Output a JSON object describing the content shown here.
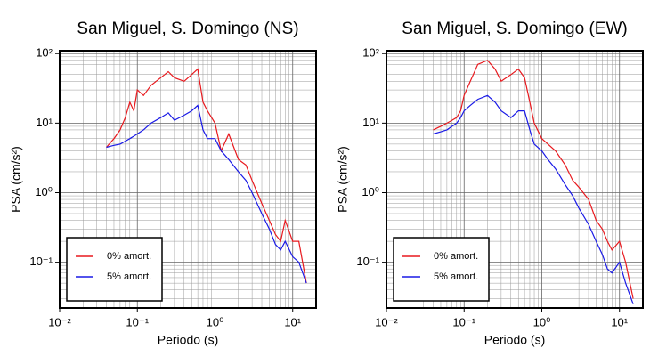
{
  "chart_data": [
    {
      "type": "line",
      "title": "San Miguel, S. Domingo (NS)",
      "xlabel": "Periodo (s)",
      "ylabel": "PSA (cm/s²)",
      "log_x": true,
      "log_y": true,
      "grid": true,
      "legend": "lower left",
      "xlim": [
        0.01,
        20
      ],
      "ylim": [
        0.022,
        110
      ],
      "xticks": [
        {
          "value": 0.01,
          "label": "10⁻²"
        },
        {
          "value": 0.1,
          "label": "10⁻¹"
        },
        {
          "value": 1,
          "label": "10⁰"
        },
        {
          "value": 10,
          "label": "10¹"
        }
      ],
      "yticks": [
        {
          "value": 0.1,
          "label": "10⁻¹"
        },
        {
          "value": 1,
          "label": "10⁰"
        },
        {
          "value": 10,
          "label": "10¹"
        },
        {
          "value": 100,
          "label": "10²"
        }
      ],
      "x": [
        0.04,
        0.05,
        0.06,
        0.07,
        0.08,
        0.09,
        0.1,
        0.12,
        0.15,
        0.2,
        0.25,
        0.3,
        0.4,
        0.5,
        0.6,
        0.7,
        0.8,
        1.0,
        1.2,
        1.5,
        2,
        2.5,
        3,
        4,
        5,
        6,
        7,
        8,
        10,
        12,
        15
      ],
      "series": [
        {
          "name": "0% amort.",
          "color": "#e8191e",
          "values": [
            4.5,
            6,
            8,
            12,
            20,
            15,
            30,
            25,
            35,
            45,
            55,
            45,
            40,
            50,
            60,
            20,
            15,
            10,
            4,
            7,
            3,
            2.5,
            1.5,
            0.7,
            0.4,
            0.25,
            0.2,
            0.4,
            0.2,
            0.2,
            0.05
          ]
        },
        {
          "name": "5% amort.",
          "color": "#1a1ae6",
          "values": [
            4.5,
            4.8,
            5,
            5.5,
            6,
            6.5,
            7,
            8,
            10,
            12,
            14,
            11,
            13,
            15,
            18,
            8,
            6,
            6,
            4,
            3,
            2,
            1.5,
            1,
            0.5,
            0.3,
            0.18,
            0.15,
            0.2,
            0.12,
            0.1,
            0.05
          ]
        }
      ]
    },
    {
      "type": "line",
      "title": "San Miguel, S. Domingo (EW)",
      "xlabel": "Periodo (s)",
      "ylabel": "PSA (cm/s²)",
      "log_x": true,
      "log_y": true,
      "grid": true,
      "legend": "lower left",
      "xlim": [
        0.01,
        20
      ],
      "ylim": [
        0.022,
        110
      ],
      "xticks": [
        {
          "value": 0.01,
          "label": "10⁻²"
        },
        {
          "value": 0.1,
          "label": "10⁻¹"
        },
        {
          "value": 1,
          "label": "10⁰"
        },
        {
          "value": 10,
          "label": "10¹"
        }
      ],
      "yticks": [
        {
          "value": 0.1,
          "label": "10⁻¹"
        },
        {
          "value": 1,
          "label": "10⁰"
        },
        {
          "value": 10,
          "label": "10¹"
        },
        {
          "value": 100,
          "label": "10²"
        }
      ],
      "x": [
        0.04,
        0.05,
        0.06,
        0.07,
        0.08,
        0.09,
        0.1,
        0.12,
        0.15,
        0.2,
        0.25,
        0.3,
        0.4,
        0.5,
        0.6,
        0.7,
        0.8,
        1.0,
        1.2,
        1.5,
        2,
        2.5,
        3,
        4,
        5,
        6,
        7,
        8,
        10,
        12,
        15
      ],
      "series": [
        {
          "name": "0% amort.",
          "color": "#e8191e",
          "values": [
            8,
            9,
            10,
            11,
            12,
            15,
            25,
            40,
            70,
            80,
            60,
            40,
            50,
            60,
            45,
            20,
            10,
            6,
            5,
            4,
            2.5,
            1.5,
            1.2,
            0.8,
            0.4,
            0.3,
            0.2,
            0.15,
            0.2,
            0.1,
            0.03
          ]
        },
        {
          "name": "5% amort.",
          "color": "#1a1ae6",
          "values": [
            7,
            7.5,
            8,
            9,
            10,
            12,
            15,
            18,
            22,
            25,
            20,
            15,
            12,
            15,
            15,
            8,
            5,
            4,
            3,
            2.2,
            1.3,
            0.9,
            0.6,
            0.35,
            0.2,
            0.13,
            0.08,
            0.07,
            0.1,
            0.05,
            0.025
          ]
        }
      ]
    }
  ]
}
